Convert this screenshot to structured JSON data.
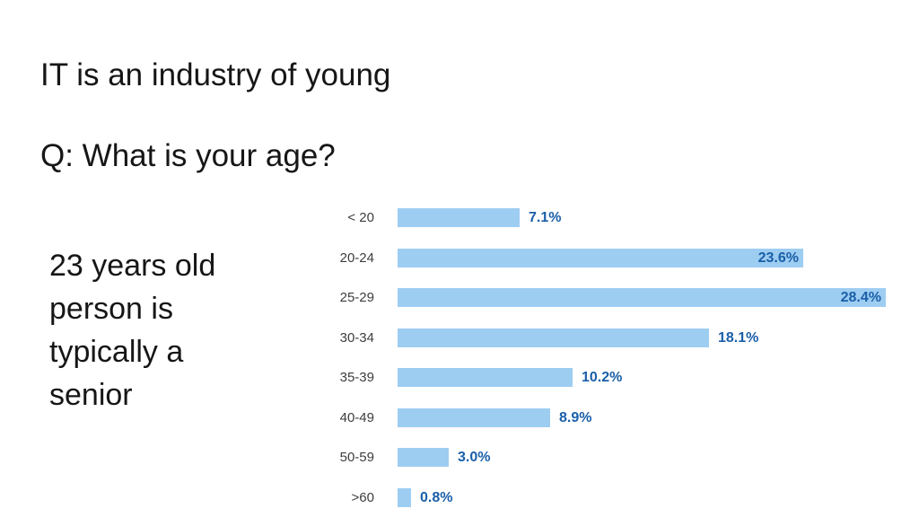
{
  "slide": {
    "title": "IT is an industry of young",
    "question": "Q: What is your age?",
    "callout": "23 years old\nperson is\ntypically a\nsenior"
  },
  "colors": {
    "background": "#ffffff",
    "bar_fill": "#9ECDF2",
    "value_label": "#1A5FA8",
    "category_label": "#3d3d3d",
    "text": "#161616"
  },
  "chart_data": {
    "type": "bar",
    "orientation": "horizontal",
    "title": "",
    "xlabel": "",
    "ylabel": "",
    "categories": [
      "< 20",
      "20-24",
      "25-29",
      "30-34",
      "35-39",
      "40-49",
      "50-59",
      ">60"
    ],
    "values": [
      7.1,
      23.6,
      28.4,
      18.1,
      10.2,
      8.9,
      3.0,
      0.8
    ],
    "value_labels": [
      "7.1%",
      "23.6%",
      "28.4%",
      "18.1%",
      "10.2%",
      "8.9%",
      "3.0%",
      "0.8%"
    ],
    "labels_inside": [
      false,
      true,
      true,
      false,
      false,
      false,
      false,
      false
    ],
    "xlim": [
      0,
      30
    ],
    "grid": false,
    "axis_lines": false,
    "legend": "none"
  }
}
